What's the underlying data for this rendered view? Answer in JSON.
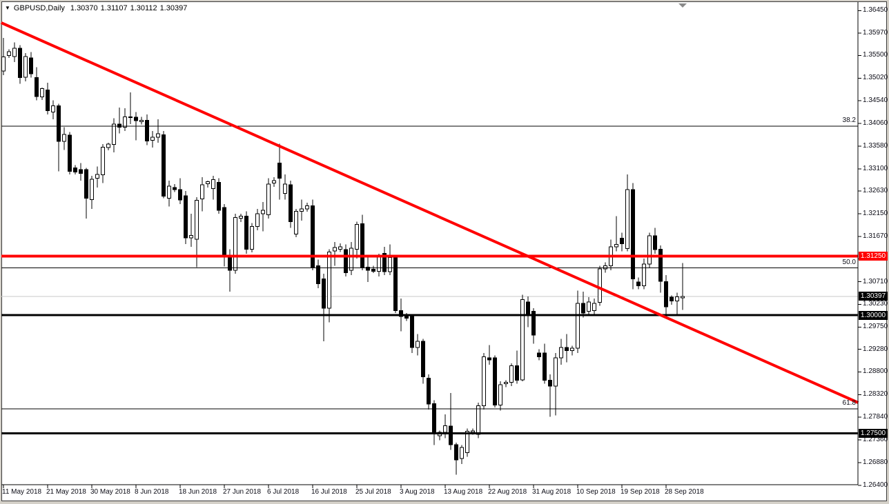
{
  "header": {
    "collapse_icon": "▼",
    "symbol_period": "GBPUSD,Daily",
    "open": "1.30370",
    "high": "1.31107",
    "low": "1.30112",
    "close": "1.30397"
  },
  "colors": {
    "background": "#FFFFFF",
    "frame": "#000000",
    "bull_candle": "#FFFFFF",
    "bear_candle": "#000000",
    "candle_outline": "#000000",
    "object_red": "#FF0000",
    "object_black": "#000000",
    "current_price_line": "#C8C8C8",
    "badge_text": "#FFFFFF",
    "window_chrome": "#D4D0C8",
    "shift_marker": "#8A8A8A"
  },
  "price_axis": {
    "labels": [
      "1.36450",
      "1.35970",
      "1.35500",
      "1.35020",
      "1.34540",
      "1.34060",
      "1.33580",
      "1.33100",
      "1.32630",
      "1.32150",
      "1.31670",
      "1.31190",
      "1.30710",
      "1.30230",
      "1.29750",
      "1.29280",
      "1.28800",
      "1.28320",
      "1.27840",
      "1.27360",
      "1.26880",
      "1.26400"
    ]
  },
  "date_axis": {
    "labels": [
      {
        "index": 0,
        "label": "11 May 2018"
      },
      {
        "index": 8,
        "label": "21 May 2018"
      },
      {
        "index": 16,
        "label": "30 May 2018"
      },
      {
        "index": 24,
        "label": "8 Jun 2018"
      },
      {
        "index": 32,
        "label": "18 Jun 2018"
      },
      {
        "index": 40,
        "label": "27 Jun 2018"
      },
      {
        "index": 48,
        "label": "6 Jul 2018"
      },
      {
        "index": 56,
        "label": "16 Jul 2018"
      },
      {
        "index": 64,
        "label": "25 Jul 2018"
      },
      {
        "index": 72,
        "label": "3 Aug 2018"
      },
      {
        "index": 80,
        "label": "13 Aug 2018"
      },
      {
        "index": 88,
        "label": "22 Aug 2018"
      },
      {
        "index": 96,
        "label": "31 Aug 2018"
      },
      {
        "index": 104,
        "label": "10 Sep 2018"
      },
      {
        "index": 112,
        "label": "19 Sep 2018"
      },
      {
        "index": 120,
        "label": "28 Sep 2018"
      }
    ]
  },
  "chart_data": {
    "type": "candlestick",
    "symbol": "GBPUSD",
    "timeframe": "Daily",
    "ohlc_readout": {
      "open": 1.3037,
      "high": 1.31107,
      "low": 1.30112,
      "close": 1.30397
    },
    "y_axis": {
      "min": 1.259,
      "max": 1.368,
      "tick_step": 0.0048
    },
    "horizontal_lines": [
      {
        "price": 1.3125,
        "label": "1.31250",
        "color": "#FF0000",
        "width": 4,
        "badge": true,
        "badge_bg": "#FF0000"
      },
      {
        "price": 1.3,
        "label": "1.30000",
        "color": "#000000",
        "width": 3,
        "badge": true,
        "badge_bg": "#000000"
      },
      {
        "price": 1.275,
        "label": "1.27500",
        "color": "#000000",
        "width": 3,
        "badge": true,
        "badge_bg": "#000000"
      }
    ],
    "current_price_line": {
      "price": 1.30397,
      "label": "1.30397",
      "color": "#C8C8C8",
      "badge_bg": "#000000"
    },
    "fibonacci_levels": [
      {
        "label": "38.2",
        "price": 1.34
      },
      {
        "label": "50.0",
        "price": 1.31
      },
      {
        "label": "61.8",
        "price": 1.2802
      }
    ],
    "trendline": {
      "color": "#FF0000",
      "width": 4,
      "from": {
        "index": -0.4,
        "price": 1.36193
      },
      "to": {
        "index": 154.8,
        "price": 1.28149
      }
    },
    "candles": [
      {
        "d": "11 May",
        "o": 1.3517,
        "h": 1.3587,
        "l": 1.3508,
        "c": 1.3547
      },
      {
        "d": "13 May",
        "o": 1.355,
        "h": 1.3563,
        "l": 1.3545,
        "c": 1.3558
      },
      {
        "d": "14 May",
        "o": 1.3548,
        "h": 1.3578,
        "l": 1.3536,
        "c": 1.3565
      },
      {
        "d": "15 May",
        "o": 1.3565,
        "h": 1.3572,
        "l": 1.349,
        "c": 1.3503
      },
      {
        "d": "16 May",
        "o": 1.3504,
        "h": 1.3555,
        "l": 1.3495,
        "c": 1.3548
      },
      {
        "d": "17 May",
        "o": 1.3545,
        "h": 1.3557,
        "l": 1.3503,
        "c": 1.3511
      },
      {
        "d": "18 May",
        "o": 1.3503,
        "h": 1.3525,
        "l": 1.3455,
        "c": 1.3463
      },
      {
        "d": "20 May",
        "o": 1.3462,
        "h": 1.3482,
        "l": 1.3456,
        "c": 1.348
      },
      {
        "d": "21 May",
        "o": 1.3477,
        "h": 1.3492,
        "l": 1.3425,
        "c": 1.3433
      },
      {
        "d": "22 May",
        "o": 1.343,
        "h": 1.3455,
        "l": 1.3415,
        "c": 1.3443
      },
      {
        "d": "23 May",
        "o": 1.3443,
        "h": 1.3448,
        "l": 1.3305,
        "c": 1.3368
      },
      {
        "d": "24 May",
        "o": 1.3368,
        "h": 1.3398,
        "l": 1.335,
        "c": 1.3383
      },
      {
        "d": "25 May",
        "o": 1.3381,
        "h": 1.3388,
        "l": 1.3298,
        "c": 1.3305
      },
      {
        "d": "27 May",
        "o": 1.3312,
        "h": 1.3318,
        "l": 1.3298,
        "c": 1.3303
      },
      {
        "d": "28 May",
        "o": 1.3308,
        "h": 1.3322,
        "l": 1.3285,
        "c": 1.33
      },
      {
        "d": "29 May",
        "o": 1.3308,
        "h": 1.3312,
        "l": 1.3205,
        "c": 1.3248
      },
      {
        "d": "30 May",
        "o": 1.3245,
        "h": 1.3295,
        "l": 1.3225,
        "c": 1.3288
      },
      {
        "d": "31 May",
        "o": 1.329,
        "h": 1.3315,
        "l": 1.327,
        "c": 1.3298
      },
      {
        "d": "1 Jun",
        "o": 1.3297,
        "h": 1.3362,
        "l": 1.328,
        "c": 1.3356
      },
      {
        "d": "3 Jun",
        "o": 1.3355,
        "h": 1.3365,
        "l": 1.3349,
        "c": 1.3362
      },
      {
        "d": "4 Jun",
        "o": 1.3362,
        "h": 1.3417,
        "l": 1.3345,
        "c": 1.3405
      },
      {
        "d": "5 Jun",
        "o": 1.3405,
        "h": 1.344,
        "l": 1.3385,
        "c": 1.3398
      },
      {
        "d": "6 Jun",
        "o": 1.3398,
        "h": 1.3438,
        "l": 1.339,
        "c": 1.342
      },
      {
        "d": "7 Jun",
        "o": 1.342,
        "h": 1.3472,
        "l": 1.3405,
        "c": 1.3419
      },
      {
        "d": "8 Jun",
        "o": 1.3419,
        "h": 1.343,
        "l": 1.337,
        "c": 1.3412
      },
      {
        "d": "10 Jun",
        "o": 1.341,
        "h": 1.342,
        "l": 1.3404,
        "c": 1.3413
      },
      {
        "d": "11 Jun",
        "o": 1.3413,
        "h": 1.3425,
        "l": 1.336,
        "c": 1.3369
      },
      {
        "d": "12 Jun",
        "o": 1.337,
        "h": 1.339,
        "l": 1.3355,
        "c": 1.3377
      },
      {
        "d": "13 Jun",
        "o": 1.3377,
        "h": 1.3415,
        "l": 1.3365,
        "c": 1.3384
      },
      {
        "d": "14 Jun",
        "o": 1.3382,
        "h": 1.339,
        "l": 1.3248,
        "c": 1.3252
      },
      {
        "d": "15 Jun",
        "o": 1.3248,
        "h": 1.3285,
        "l": 1.323,
        "c": 1.3273
      },
      {
        "d": "17 Jun",
        "o": 1.327,
        "h": 1.3278,
        "l": 1.3261,
        "c": 1.3266
      },
      {
        "d": "18 Jun",
        "o": 1.3266,
        "h": 1.329,
        "l": 1.3235,
        "c": 1.3244
      },
      {
        "d": "19 Jun",
        "o": 1.3253,
        "h": 1.3263,
        "l": 1.3151,
        "c": 1.3164
      },
      {
        "d": "20 Jun",
        "o": 1.3164,
        "h": 1.3215,
        "l": 1.3145,
        "c": 1.3169
      },
      {
        "d": "21 Jun",
        "o": 1.3161,
        "h": 1.325,
        "l": 1.3102,
        "c": 1.3243
      },
      {
        "d": "22 Jun",
        "o": 1.3246,
        "h": 1.3292,
        "l": 1.322,
        "c": 1.3276
      },
      {
        "d": "24 Jun",
        "o": 1.3278,
        "h": 1.3285,
        "l": 1.327,
        "c": 1.3283
      },
      {
        "d": "25 Jun",
        "o": 1.3268,
        "h": 1.3295,
        "l": 1.3245,
        "c": 1.3287
      },
      {
        "d": "26 Jun",
        "o": 1.3281,
        "h": 1.329,
        "l": 1.3215,
        "c": 1.3222
      },
      {
        "d": "27 Jun",
        "o": 1.3228,
        "h": 1.3235,
        "l": 1.3103,
        "c": 1.3124
      },
      {
        "d": "28 Jun",
        "o": 1.3124,
        "h": 1.314,
        "l": 1.305,
        "c": 1.3095
      },
      {
        "d": "29 Jun",
        "o": 1.3095,
        "h": 1.3215,
        "l": 1.3088,
        "c": 1.3207
      },
      {
        "d": "1 Jul",
        "o": 1.3205,
        "h": 1.3215,
        "l": 1.3197,
        "c": 1.321
      },
      {
        "d": "2 Jul",
        "o": 1.321,
        "h": 1.322,
        "l": 1.313,
        "c": 1.314
      },
      {
        "d": "3 Jul",
        "o": 1.314,
        "h": 1.3195,
        "l": 1.3133,
        "c": 1.3188
      },
      {
        "d": "4 Jul",
        "o": 1.3188,
        "h": 1.3225,
        "l": 1.318,
        "c": 1.3215
      },
      {
        "d": "5 Jul",
        "o": 1.3215,
        "h": 1.324,
        "l": 1.3178,
        "c": 1.3222
      },
      {
        "d": "6 Jul",
        "o": 1.3213,
        "h": 1.329,
        "l": 1.3205,
        "c": 1.3278
      },
      {
        "d": "8 Jul",
        "o": 1.328,
        "h": 1.3292,
        "l": 1.3272,
        "c": 1.3285
      },
      {
        "d": "9 Jul",
        "o": 1.3322,
        "h": 1.3363,
        "l": 1.3245,
        "c": 1.329
      },
      {
        "d": "10 Jul",
        "o": 1.3258,
        "h": 1.3298,
        "l": 1.3245,
        "c": 1.3278
      },
      {
        "d": "11 Jul",
        "o": 1.3276,
        "h": 1.3285,
        "l": 1.3185,
        "c": 1.3198
      },
      {
        "d": "12 Jul",
        "o": 1.3172,
        "h": 1.3225,
        "l": 1.3165,
        "c": 1.322
      },
      {
        "d": "13 Jul",
        "o": 1.322,
        "h": 1.3245,
        "l": 1.32,
        "c": 1.3225
      },
      {
        "d": "15 Jul",
        "o": 1.3225,
        "h": 1.3238,
        "l": 1.3219,
        "c": 1.3232
      },
      {
        "d": "16 Jul",
        "o": 1.3232,
        "h": 1.3245,
        "l": 1.3095,
        "c": 1.3101
      },
      {
        "d": "17 Jul",
        "o": 1.3105,
        "h": 1.3118,
        "l": 1.3057,
        "c": 1.3067
      },
      {
        "d": "18 Jul",
        "o": 1.3077,
        "h": 1.3088,
        "l": 1.2945,
        "c": 1.3015
      },
      {
        "d": "19 Jul",
        "o": 1.3015,
        "h": 1.314,
        "l": 1.2985,
        "c": 1.3134
      },
      {
        "d": "20 Jul",
        "o": 1.3136,
        "h": 1.3155,
        "l": 1.3105,
        "c": 1.3143
      },
      {
        "d": "22 Jul",
        "o": 1.314,
        "h": 1.3152,
        "l": 1.3134,
        "c": 1.3145
      },
      {
        "d": "23 Jul",
        "o": 1.3139,
        "h": 1.315,
        "l": 1.3082,
        "c": 1.309
      },
      {
        "d": "24 Jul",
        "o": 1.3095,
        "h": 1.3155,
        "l": 1.3085,
        "c": 1.3142
      },
      {
        "d": "25 Jul",
        "o": 1.314,
        "h": 1.3198,
        "l": 1.312,
        "c": 1.3192
      },
      {
        "d": "26 Jul",
        "o": 1.3194,
        "h": 1.3213,
        "l": 1.3095,
        "c": 1.3102
      },
      {
        "d": "27 Jul",
        "o": 1.3102,
        "h": 1.3128,
        "l": 1.307,
        "c": 1.3095
      },
      {
        "d": "29 Jul",
        "o": 1.3097,
        "h": 1.3105,
        "l": 1.3089,
        "c": 1.3093
      },
      {
        "d": "30 Jul",
        "o": 1.3093,
        "h": 1.313,
        "l": 1.3082,
        "c": 1.3125
      },
      {
        "d": "31 Jul",
        "o": 1.3131,
        "h": 1.3145,
        "l": 1.3085,
        "c": 1.3092
      },
      {
        "d": "1 Aug",
        "o": 1.3092,
        "h": 1.315,
        "l": 1.3085,
        "c": 1.3122
      },
      {
        "d": "2 Aug",
        "o": 1.3122,
        "h": 1.3127,
        "l": 1.3005,
        "c": 1.301
      },
      {
        "d": "3 Aug",
        "o": 1.301,
        "h": 1.3035,
        "l": 1.2966,
        "c": 1.2997
      },
      {
        "d": "5 Aug",
        "o": 1.3,
        "h": 1.3005,
        "l": 1.2988,
        "c": 1.2994
      },
      {
        "d": "6 Aug",
        "o": 1.2998,
        "h": 1.3,
        "l": 1.292,
        "c": 1.2932
      },
      {
        "d": "7 Aug",
        "o": 1.2932,
        "h": 1.296,
        "l": 1.2915,
        "c": 1.2945
      },
      {
        "d": "8 Aug",
        "o": 1.2945,
        "h": 1.295,
        "l": 1.2855,
        "c": 1.287
      },
      {
        "d": "9 Aug",
        "o": 1.2867,
        "h": 1.2875,
        "l": 1.28,
        "c": 1.2812
      },
      {
        "d": "10 Aug",
        "o": 1.2813,
        "h": 1.282,
        "l": 1.2725,
        "c": 1.2752
      },
      {
        "d": "12 Aug",
        "o": 1.2745,
        "h": 1.2756,
        "l": 1.2735,
        "c": 1.2752
      },
      {
        "d": "13 Aug",
        "o": 1.2752,
        "h": 1.279,
        "l": 1.274,
        "c": 1.2766
      },
      {
        "d": "14 Aug",
        "o": 1.2765,
        "h": 1.2835,
        "l": 1.2715,
        "c": 1.2726
      },
      {
        "d": "15 Aug",
        "o": 1.2726,
        "h": 1.273,
        "l": 1.2662,
        "c": 1.2694
      },
      {
        "d": "16 Aug",
        "o": 1.2697,
        "h": 1.2725,
        "l": 1.2685,
        "c": 1.272
      },
      {
        "d": "17 Aug",
        "o": 1.2709,
        "h": 1.276,
        "l": 1.27,
        "c": 1.2754
      },
      {
        "d": "19 Aug",
        "o": 1.2752,
        "h": 1.276,
        "l": 1.2747,
        "c": 1.2755
      },
      {
        "d": "20 Aug",
        "o": 1.2748,
        "h": 1.2815,
        "l": 1.274,
        "c": 1.2808
      },
      {
        "d": "21 Aug",
        "o": 1.2808,
        "h": 1.292,
        "l": 1.28,
        "c": 1.2912
      },
      {
        "d": "22 Aug",
        "o": 1.291,
        "h": 1.2937,
        "l": 1.2895,
        "c": 1.2905
      },
      {
        "d": "23 Aug",
        "o": 1.291,
        "h": 1.2915,
        "l": 1.2805,
        "c": 1.281
      },
      {
        "d": "24 Aug",
        "o": 1.281,
        "h": 1.286,
        "l": 1.2798,
        "c": 1.2853
      },
      {
        "d": "26 Aug",
        "o": 1.2855,
        "h": 1.2862,
        "l": 1.2848,
        "c": 1.2858
      },
      {
        "d": "27 Aug",
        "o": 1.2858,
        "h": 1.2898,
        "l": 1.285,
        "c": 1.2893
      },
      {
        "d": "28 Aug",
        "o": 1.2893,
        "h": 1.2925,
        "l": 1.2855,
        "c": 1.2862
      },
      {
        "d": "29 Aug",
        "o": 1.2863,
        "h": 1.3043,
        "l": 1.286,
        "c": 1.3033
      },
      {
        "d": "30 Aug",
        "o": 1.3028,
        "h": 1.304,
        "l": 1.2975,
        "c": 1.3003
      },
      {
        "d": "31 Aug",
        "o": 1.3008,
        "h": 1.3015,
        "l": 1.294,
        "c": 1.2958
      },
      {
        "d": "2 Sep",
        "o": 1.292,
        "h": 1.2928,
        "l": 1.2905,
        "c": 1.2912
      },
      {
        "d": "3 Sep",
        "o": 1.292,
        "h": 1.294,
        "l": 1.2855,
        "c": 1.2862
      },
      {
        "d": "4 Sep",
        "o": 1.2862,
        "h": 1.2875,
        "l": 1.2785,
        "c": 1.285
      },
      {
        "d": "5 Sep",
        "o": 1.285,
        "h": 1.292,
        "l": 1.2788,
        "c": 1.291
      },
      {
        "d": "6 Sep",
        "o": 1.291,
        "h": 1.295,
        "l": 1.2895,
        "c": 1.2932
      },
      {
        "d": "7 Sep",
        "o": 1.2932,
        "h": 1.296,
        "l": 1.29,
        "c": 1.2925
      },
      {
        "d": "9 Sep",
        "o": 1.2925,
        "h": 1.2935,
        "l": 1.2915,
        "c": 1.293
      },
      {
        "d": "10 Sep",
        "o": 1.293,
        "h": 1.3052,
        "l": 1.292,
        "c": 1.3025
      },
      {
        "d": "11 Sep",
        "o": 1.3025,
        "h": 1.305,
        "l": 1.2995,
        "c": 1.3005
      },
      {
        "d": "12 Sep",
        "o": 1.3008,
        "h": 1.3038,
        "l": 1.3,
        "c": 1.3028
      },
      {
        "d": "13 Sep",
        "o": 1.301,
        "h": 1.3035,
        "l": 1.3002,
        "c": 1.3025
      },
      {
        "d": "14 Sep",
        "o": 1.3027,
        "h": 1.3105,
        "l": 1.302,
        "c": 1.3098
      },
      {
        "d": "16 Sep",
        "o": 1.3098,
        "h": 1.3112,
        "l": 1.309,
        "c": 1.3105
      },
      {
        "d": "17 Sep",
        "o": 1.3105,
        "h": 1.316,
        "l": 1.3095,
        "c": 1.3145
      },
      {
        "d": "18 Sep",
        "o": 1.3145,
        "h": 1.321,
        "l": 1.3135,
        "c": 1.315
      },
      {
        "d": "19 Sep",
        "o": 1.3163,
        "h": 1.3175,
        "l": 1.3135,
        "c": 1.3151
      },
      {
        "d": "20 Sep",
        "o": 1.3141,
        "h": 1.3298,
        "l": 1.3135,
        "c": 1.3266
      },
      {
        "d": "21 Sep",
        "o": 1.3266,
        "h": 1.328,
        "l": 1.3055,
        "c": 1.3077
      },
      {
        "d": "23 Sep",
        "o": 1.307,
        "h": 1.308,
        "l": 1.3055,
        "c": 1.3062
      },
      {
        "d": "24 Sep",
        "o": 1.3062,
        "h": 1.312,
        "l": 1.3055,
        "c": 1.3108
      },
      {
        "d": "25 Sep",
        "o": 1.3108,
        "h": 1.3175,
        "l": 1.31,
        "c": 1.3168
      },
      {
        "d": "26 Sep",
        "o": 1.3168,
        "h": 1.3185,
        "l": 1.313,
        "c": 1.3139
      },
      {
        "d": "27 Sep",
        "o": 1.314,
        "h": 1.3148,
        "l": 1.3048,
        "c": 1.3072
      },
      {
        "d": "28 Sep",
        "o": 1.3071,
        "h": 1.3085,
        "l": 1.3,
        "c": 1.3018
      },
      {
        "d": "30 Sep",
        "o": 1.3038,
        "h": 1.3042,
        "l": 1.3022,
        "c": 1.303
      },
      {
        "d": "1 Oct",
        "o": 1.303,
        "h": 1.3048,
        "l": 1.3,
        "c": 1.3039
      },
      {
        "d": "2 Oct",
        "o": 1.3037,
        "h": 1.31107,
        "l": 1.30112,
        "c": 1.30397
      }
    ]
  }
}
